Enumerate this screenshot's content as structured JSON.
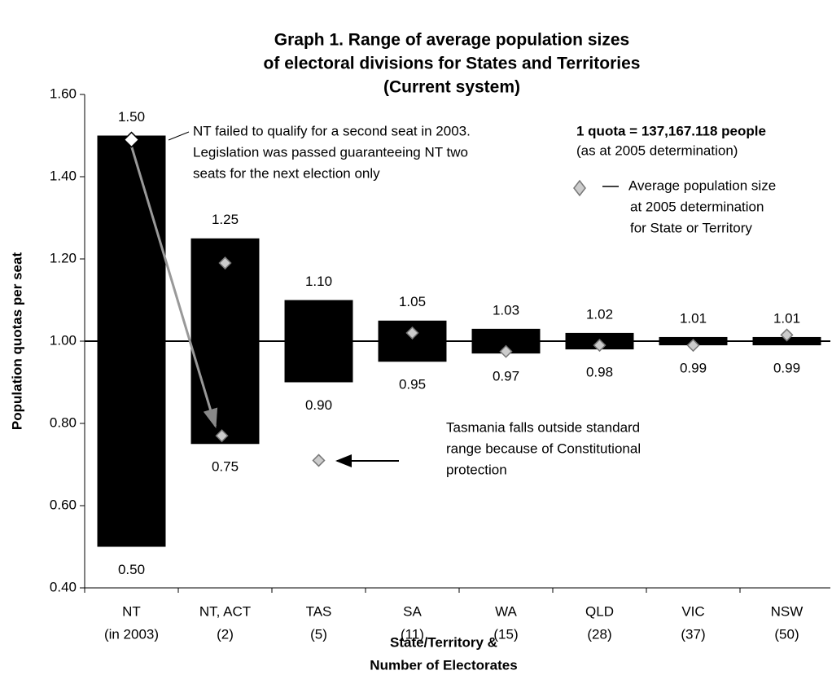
{
  "chart_data": {
    "type": "range_bar",
    "title": [
      "Graph 1.  Range of average population sizes",
      "of electoral divisions for States and Territories",
      "(Current system)"
    ],
    "y_label": "Population quotas per seat",
    "x_label": [
      "State/Territory &",
      "Number of Electorates"
    ],
    "categories": [
      [
        "NT",
        "(in 2003)"
      ],
      [
        "NT, ACT",
        "(2)"
      ],
      [
        "TAS",
        "(5)"
      ],
      [
        "SA",
        "(11)"
      ],
      [
        "WA",
        "(15)"
      ],
      [
        "QLD",
        "(28)"
      ],
      [
        "VIC",
        "(37)"
      ],
      [
        "NSW",
        "(50)"
      ]
    ],
    "high": {
      "values": [
        1.5,
        1.25,
        1.1,
        1.05,
        1.03,
        1.02,
        1.01,
        1.01
      ],
      "value_labels": [
        "1.50",
        "1.25",
        "1.10",
        "1.05",
        "1.03",
        "1.02",
        "1.01",
        "1.01"
      ]
    },
    "low": {
      "values": [
        0.5,
        0.75,
        0.9,
        0.95,
        0.97,
        0.98,
        0.99,
        0.99
      ],
      "value_labels": [
        "0.50",
        "0.75",
        "0.90",
        "0.95",
        "0.97",
        "0.98",
        "0.99",
        "0.99"
      ]
    },
    "averages": [
      1.49,
      1.19,
      0.71,
      1.02,
      0.975,
      0.99,
      0.99,
      1.015
    ],
    "averages_nt_2005": [
      null,
      0.77,
      null,
      null,
      null,
      null,
      null,
      null
    ],
    "bar_color": "#000000",
    "reference_line": 1,
    "ylim": [
      0.4,
      1.6
    ],
    "yticks": [
      {
        "value": 0.4,
        "label": "0.40"
      },
      {
        "value": 0.6,
        "label": "0.60"
      },
      {
        "value": 0.8,
        "label": "0.80"
      },
      {
        "value": 1,
        "label": "1.00"
      },
      {
        "value": 1.2,
        "label": "1.20"
      },
      {
        "value": 1.4,
        "label": "1.40"
      },
      {
        "value": 1.6,
        "label": "1.60"
      }
    ],
    "annotations": {
      "nt_note": [
        "NT failed to qualify for a second seat in 2003.",
        "Legislation was passed guaranteeing NT two",
        "seats for the next election only"
      ],
      "quota": [
        "1 quota = 137,167.118 people",
        "(as at 2005 determination)"
      ],
      "legend": [
        "Average population size",
        "at 2005 determination",
        "for State or Territory"
      ],
      "tas_note": [
        "Tasmania falls outside standard",
        "range because of Constitutional",
        "protection"
      ]
    }
  }
}
